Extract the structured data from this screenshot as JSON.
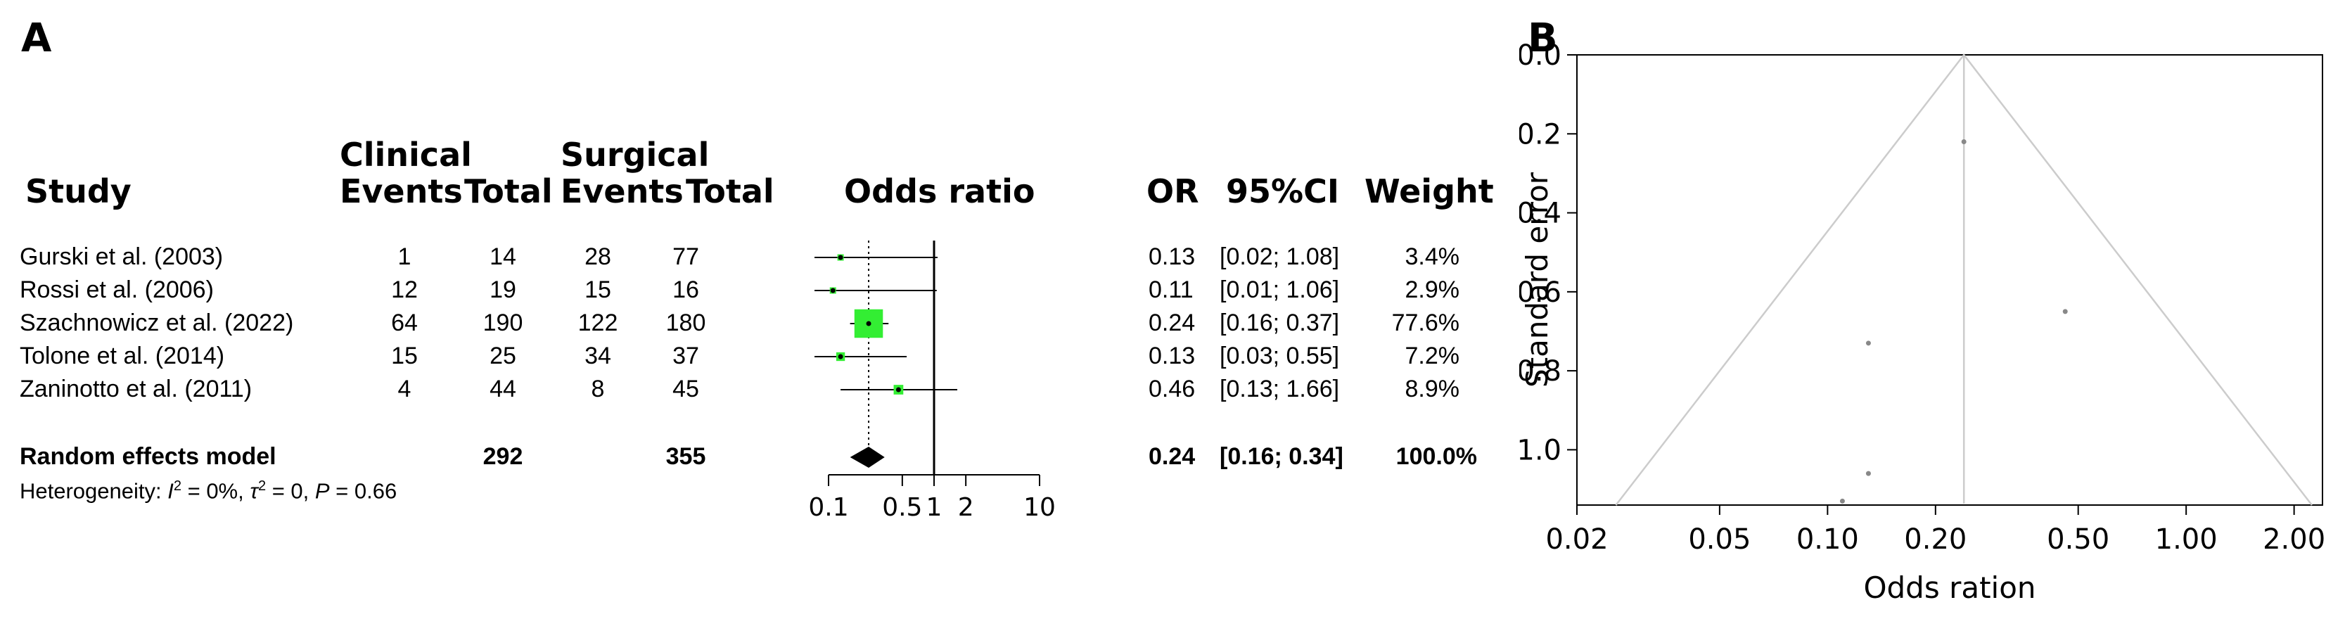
{
  "panel_a": {
    "letter": "A",
    "headers": {
      "study": "Study",
      "group1": "Clinical",
      "group2": "Surgical",
      "events": "Events",
      "total": "Total",
      "odds_ratio": "Odds ratio",
      "or": "OR",
      "ci": "95%CI",
      "weight": "Weight"
    },
    "random_effects": {
      "label": "Random effects model",
      "total1": "292",
      "total2": "355",
      "or": "0.24",
      "ci": "[0.16; 0.34]",
      "weight": "100.0%"
    },
    "heterogeneity": {
      "prefix": "Heterogeneity: ",
      "i2_symbol": "I",
      "i2_value": " = 0%, ",
      "tau2_symbol": "τ",
      "tau2_value": " = 0, ",
      "p_symbol": "P",
      "p_value": " = 0.66"
    }
  },
  "chart_data": [
    {
      "type": "forest",
      "xscale": "log",
      "xlim": [
        0.1,
        10
      ],
      "xticks": [
        "0.1",
        "0.5",
        "1",
        "2",
        "10"
      ],
      "reference_line": 1,
      "pooled_line": 0.24,
      "colors": {
        "box": "#33ee33",
        "diamond": "#000000",
        "line": "#000000"
      },
      "studies": [
        {
          "study": "Gurski et al. (2003)",
          "events1": "1",
          "total1": "14",
          "events2": "28",
          "total2": "77",
          "or": 0.13,
          "ci": [
            0.02,
            1.08
          ],
          "or_text": "0.13",
          "ci_text": "[0.02; 1.08]",
          "weight_text": "3.4%",
          "weight": 3.4
        },
        {
          "study": "Rossi et al. (2006)",
          "events1": "12",
          "total1": "19",
          "events2": "15",
          "total2": "16",
          "or": 0.11,
          "ci": [
            0.01,
            1.06
          ],
          "or_text": "0.11",
          "ci_text": "[0.01; 1.06]",
          "weight_text": "2.9%",
          "weight": 2.9
        },
        {
          "study": "Szachnowicz et al. (2022)",
          "events1": "64",
          "total1": "190",
          "events2": "122",
          "total2": "180",
          "or": 0.24,
          "ci": [
            0.16,
            0.37
          ],
          "or_text": "0.24",
          "ci_text": "[0.16; 0.37]",
          "weight_text": "77.6%",
          "weight": 77.6
        },
        {
          "study": "Tolone et al. (2014)",
          "events1": "15",
          "total1": "25",
          "events2": "34",
          "total2": "37",
          "or": 0.13,
          "ci": [
            0.03,
            0.55
          ],
          "or_text": "0.13",
          "ci_text": "[0.03; 0.55]",
          "weight_text": "7.2%",
          "weight": 7.2
        },
        {
          "study": "Zaninotto et al. (2011)",
          "events1": "4",
          "total1": "44",
          "events2": "8",
          "total2": "45",
          "or": 0.46,
          "ci": [
            0.13,
            1.66
          ],
          "or_text": "0.46",
          "ci_text": "[0.13; 1.66]",
          "weight_text": "8.9%",
          "weight": 8.9
        }
      ],
      "pooled": {
        "or": 0.24,
        "ci": [
          0.16,
          0.34
        ]
      }
    },
    {
      "type": "scatter",
      "subtype": "funnel",
      "letter": "B",
      "xlabel": "Odds ration",
      "ylabel": "Standard error",
      "xscale": "log",
      "xlim": [
        0.02,
        2.4
      ],
      "ylim": [
        0,
        1.14
      ],
      "y_inverted": true,
      "xticks": [
        "0.02",
        "0.05",
        "0.10",
        "0.20",
        "0.50",
        "1.00",
        "2.00"
      ],
      "yticks": [
        "0.0",
        "0.2",
        "0.4",
        "0.6",
        "0.8",
        "1.0"
      ],
      "center": 0.24,
      "points": [
        {
          "x": 0.24,
          "y": 0.22
        },
        {
          "x": 0.46,
          "y": 0.65
        },
        {
          "x": 0.13,
          "y": 0.73
        },
        {
          "x": 0.13,
          "y": 1.06
        },
        {
          "x": 0.11,
          "y": 1.13
        }
      ],
      "colors": {
        "funnel": "#cccccc",
        "points": "#888888",
        "axis": "#000000"
      }
    }
  ]
}
